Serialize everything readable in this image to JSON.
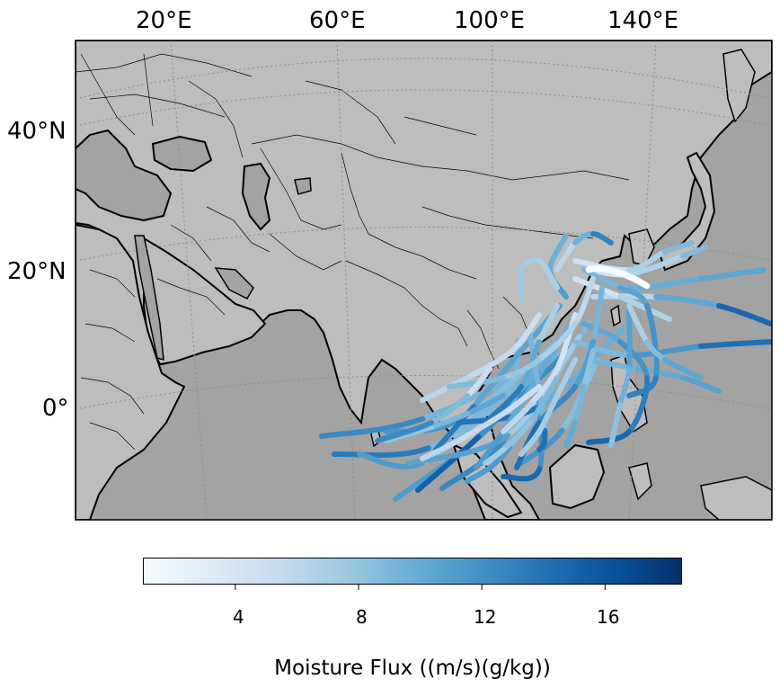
{
  "map": {
    "lon_labels": [
      {
        "text": "20°E"
      },
      {
        "text": "60°E"
      },
      {
        "text": "100°E"
      },
      {
        "text": "140°E"
      }
    ],
    "lat_labels": [
      {
        "text": "40°N"
      },
      {
        "text": "20°N"
      },
      {
        "text": "0°"
      }
    ],
    "colors": {
      "land": "#bdbdbd",
      "ocean": "#a3a3a3",
      "coastline": "#000000",
      "borders": "#000000",
      "graticule": "#8c8c8c"
    }
  },
  "colorbar": {
    "title": "Moisture Flux ((m/s)(g/kg))",
    "colormap": "Blues",
    "range": [
      1,
      18.5
    ],
    "ticks": [
      {
        "label": "4",
        "value": 4
      },
      {
        "label": "8",
        "value": 8
      },
      {
        "label": "12",
        "value": 12
      },
      {
        "label": "16",
        "value": 16
      }
    ],
    "stops": [
      "#f7fbff",
      "#deebf7",
      "#c6dbef",
      "#9ecae1",
      "#6baed6",
      "#4292c6",
      "#2171b5",
      "#08519c",
      "#08306b"
    ]
  },
  "trajectories": {
    "description_units": "moisture flux values along each back-trajectory",
    "count_shown": 40
  }
}
